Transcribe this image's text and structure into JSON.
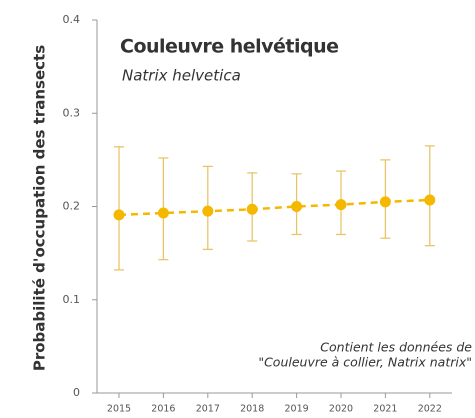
{
  "chart_data": {
    "type": "line",
    "title": "Couleuvre helvétique",
    "subtitle": "Natrix helvetica",
    "y_label": "Probabilité d'occupation des transects",
    "annotation": [
      "Contient les données de",
      "\"Couleuvre à collier, Natrix natrix\""
    ],
    "categories": [
      "2015",
      "2016",
      "2017",
      "2018",
      "2019",
      "2020",
      "2021",
      "2022"
    ],
    "series": [
      {
        "name": "Couleuvre helvétique",
        "color": "#f5b800",
        "values": [
          0.191,
          0.193,
          0.195,
          0.197,
          0.2,
          0.202,
          0.205,
          0.207
        ],
        "lower": [
          0.132,
          0.143,
          0.154,
          0.163,
          0.17,
          0.17,
          0.166,
          0.158
        ],
        "upper": [
          0.264,
          0.252,
          0.243,
          0.236,
          0.235,
          0.238,
          0.25,
          0.265
        ]
      }
    ],
    "error_color": "#e9c56a",
    "ylim": [
      0,
      0.4
    ],
    "yticks": [
      0,
      0.1,
      0.2,
      0.3,
      0.4
    ]
  }
}
